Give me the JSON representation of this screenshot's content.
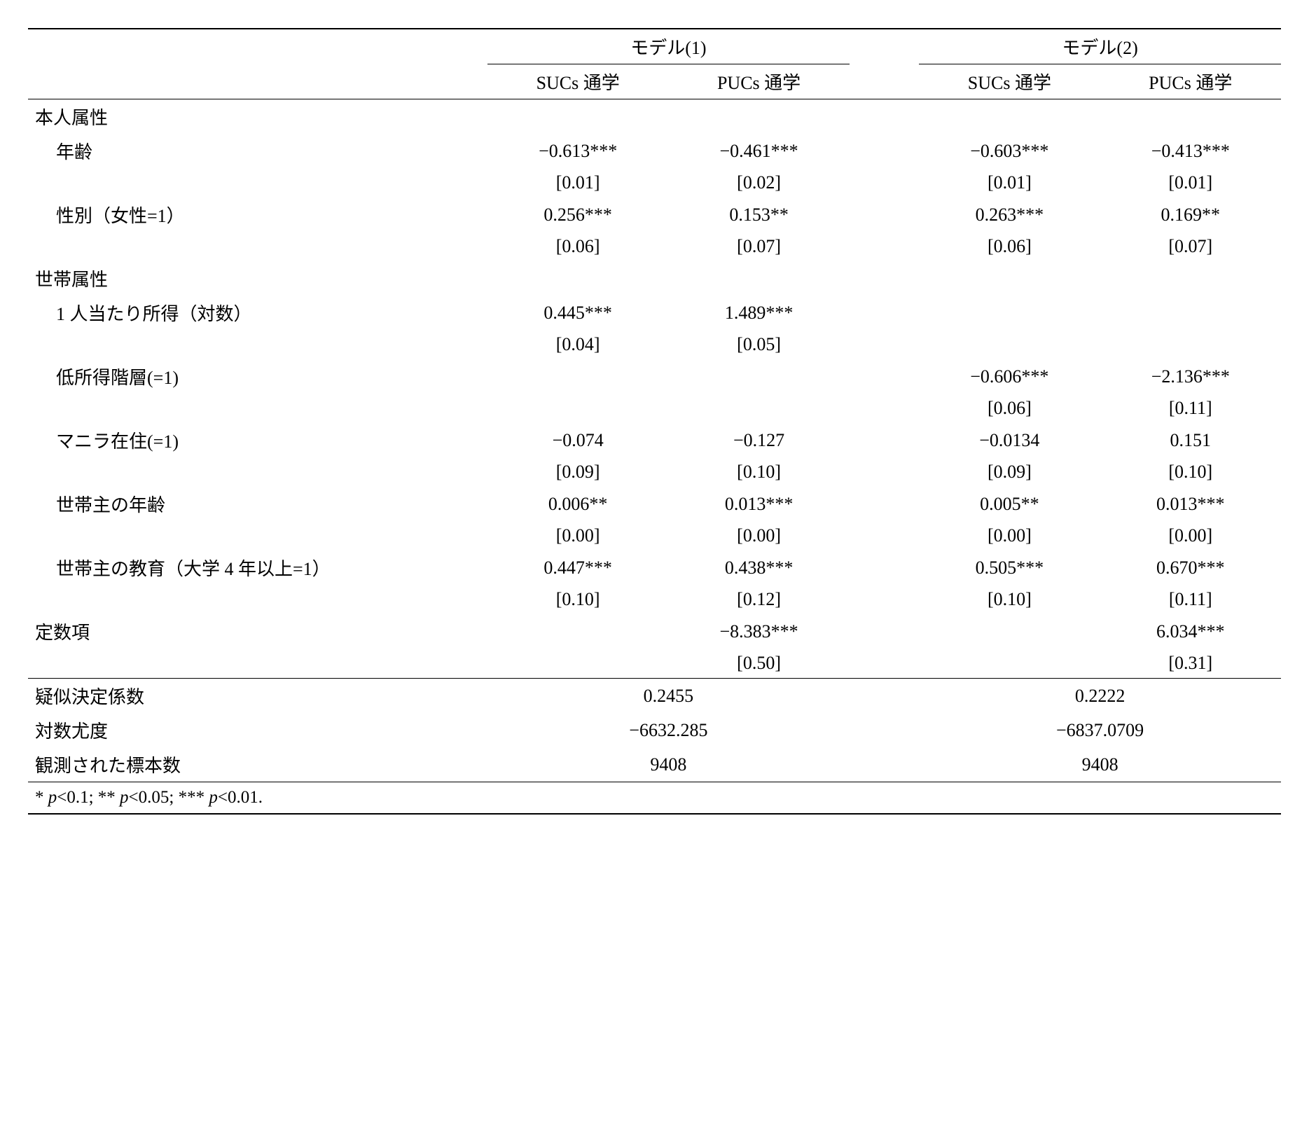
{
  "headers": {
    "model1": "モデル(1)",
    "model2": "モデル(2)",
    "sucs": "SUCs 通学",
    "pucs": "PUCs 通学"
  },
  "sections": {
    "personal": "本人属性",
    "household": "世帯属性"
  },
  "rows": {
    "age": {
      "label": "年齢",
      "m1s": "−0.613***",
      "m1p": "−0.461***",
      "m2s": "−0.603***",
      "m2p": "−0.413***",
      "m1s_se": "[0.01]",
      "m1p_se": "[0.02]",
      "m2s_se": "[0.01]",
      "m2p_se": "[0.01]"
    },
    "sex": {
      "label": "性別（女性=1）",
      "m1s": "0.256***",
      "m1p": "0.153**",
      "m2s": "0.263***",
      "m2p": "0.169**",
      "m1s_se": "[0.06]",
      "m1p_se": "[0.07]",
      "m2s_se": "[0.06]",
      "m2p_se": "[0.07]"
    },
    "income": {
      "label": "1 人当たり所得（対数）",
      "m1s": "0.445***",
      "m1p": "1.489***",
      "m2s": "",
      "m2p": "",
      "m1s_se": "[0.04]",
      "m1p_se": "[0.05]",
      "m2s_se": "",
      "m2p_se": ""
    },
    "lowincome": {
      "label": "低所得階層(=1)",
      "m1s": "",
      "m1p": "",
      "m2s": "−0.606***",
      "m2p": "−2.136***",
      "m1s_se": "",
      "m1p_se": "",
      "m2s_se": "[0.06]",
      "m2p_se": "[0.11]"
    },
    "manila": {
      "label": "マニラ在住(=1)",
      "m1s": "−0.074",
      "m1p": "−0.127",
      "m2s": "−0.0134",
      "m2p": "0.151",
      "m1s_se": "[0.09]",
      "m1p_se": "[0.10]",
      "m2s_se": "[0.09]",
      "m2p_se": "[0.10]"
    },
    "hhage": {
      "label": "世帯主の年齢",
      "m1s": "0.006**",
      "m1p": "0.013***",
      "m2s": "0.005**",
      "m2p": "0.013***",
      "m1s_se": "[0.00]",
      "m1p_se": "[0.00]",
      "m2s_se": "[0.00]",
      "m2p_se": "[0.00]"
    },
    "hhedu": {
      "label": "世帯主の教育（大学 4 年以上=1）",
      "m1s": "0.447***",
      "m1p": "0.438***",
      "m2s": "0.505***",
      "m2p": "0.670***",
      "m1s_se": "[0.10]",
      "m1p_se": "[0.12]",
      "m2s_se": "[0.10]",
      "m2p_se": "[0.11]"
    },
    "const": {
      "label": "定数項",
      "m1p": "−8.383***",
      "m2p": "6.034***",
      "m1p_se": "[0.50]",
      "m2p_se": "[0.31]"
    }
  },
  "stats": {
    "pseudo_r2": {
      "label": "疑似決定係数",
      "m1": "0.2455",
      "m2": "0.2222"
    },
    "loglik": {
      "label": "対数尤度",
      "m1": "−6632.285",
      "m2": "−6837.0709"
    },
    "nobs": {
      "label": "観測された標本数",
      "m1": "9408",
      "m2": "9408"
    }
  },
  "footnote": {
    "star1_pre": "* ",
    "star1_p": "p",
    "star1_post": "<0.1; ** ",
    "star2_p": "p",
    "star2_post": "<0.05; *** ",
    "star3_p": "p",
    "star3_post": "<0.01."
  }
}
